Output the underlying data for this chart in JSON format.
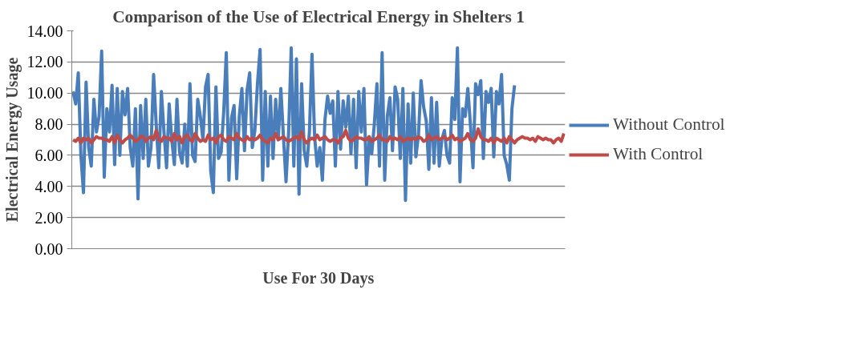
{
  "chart_data": {
    "type": "line",
    "title": "Comparison of the Use of Electrical Energy in Shelters 1",
    "xlabel": "Use For 30 Days",
    "ylabel": "Electrical Energy Usage",
    "categories": [
      null,
      null,
      null,
      null,
      null,
      null,
      null,
      null,
      null,
      null,
      null,
      null,
      null,
      null,
      null,
      null,
      null,
      null,
      null,
      null,
      null,
      null,
      null,
      null,
      null,
      null,
      null,
      null,
      null,
      null,
      null,
      null,
      null,
      null,
      null,
      null,
      null,
      null,
      null,
      null,
      null,
      null,
      null,
      null,
      null,
      null,
      null,
      null,
      null,
      null,
      null,
      null,
      null,
      null,
      null,
      null,
      null,
      null,
      null,
      null,
      null,
      null,
      null,
      null,
      null,
      null,
      null,
      null,
      null,
      null,
      null,
      null,
      null,
      null,
      null,
      null,
      null,
      null,
      null,
      null,
      null,
      null,
      null,
      null,
      null,
      null,
      null,
      null,
      null,
      null,
      null,
      null,
      null,
      null,
      null,
      null,
      null,
      null,
      null,
      null,
      null,
      null,
      null,
      null,
      null,
      null,
      null,
      null,
      null,
      null,
      null,
      null,
      null,
      null,
      null,
      null,
      null,
      null,
      null,
      null,
      null,
      null,
      null,
      null,
      null,
      null,
      null,
      null,
      null,
      null,
      null,
      null,
      null,
      null,
      null,
      null,
      null,
      null,
      null,
      null,
      null,
      null,
      null,
      null,
      null,
      null,
      null,
      null,
      null,
      null,
      null,
      null,
      null,
      null,
      null,
      null,
      null,
      null,
      null,
      null,
      null,
      null,
      null,
      null,
      null,
      null,
      null,
      null,
      null,
      null,
      null,
      null,
      null,
      null,
      null,
      null,
      null,
      null,
      null,
      null,
      null,
      null,
      null,
      null,
      null,
      null,
      null,
      null,
      null,
      null
    ],
    "series": [
      {
        "name": "Without Control",
        "color": "#4a7ebb",
        "values": [
          10.1,
          9.3,
          11.3,
          6.0,
          3.6,
          10.7,
          6.5,
          5.3,
          9.6,
          7.5,
          8.5,
          12.7,
          4.6,
          9.0,
          7.5,
          10.5,
          5.4,
          10.3,
          6.0,
          10.1,
          8.6,
          10.3,
          6.5,
          5.3,
          9.0,
          3.2,
          9.2,
          5.8,
          9.6,
          5.3,
          6.5,
          11.2,
          8.0,
          5.2,
          10.1,
          7.5,
          5.2,
          9.3,
          7.0,
          5.4,
          9.6,
          6.2,
          5.5,
          8.0,
          5.3,
          10.6,
          6.0,
          5.6,
          9.6,
          8.5,
          7.0,
          10.4,
          11.2,
          5.0,
          3.6,
          10.4,
          5.8,
          6.2,
          8.8,
          12.6,
          4.4,
          8.4,
          9.2,
          4.5,
          8.5,
          10.3,
          6.3,
          10.2,
          11.3,
          6.5,
          7.6,
          10.6,
          12.8,
          4.4,
          10.1,
          5.3,
          9.8,
          5.8,
          9.6,
          7.0,
          10.3,
          7.2,
          4.3,
          7.5,
          12.9,
          5.3,
          12.2,
          3.5,
          10.6,
          6.3,
          5.3,
          7.5,
          12.5,
          7.2,
          5.3,
          6.5,
          4.4,
          8.3,
          9.8,
          8.7,
          9.5,
          5.3,
          10.1,
          6.4,
          9.5,
          7.8,
          9.8,
          6.1,
          9.6,
          5.2,
          10.1,
          7.5,
          10.3,
          4.1,
          7.0,
          6.1,
          8.0,
          10.6,
          5.3,
          12.6,
          4.4,
          8.5,
          9.7,
          6.3,
          10.4,
          9.6,
          5.8,
          10.3,
          3.1,
          9.3,
          5.5,
          10.0,
          5.9,
          7.3,
          10.8,
          9.1,
          8.2,
          5.1,
          9.7,
          5.5,
          9.4,
          5.3,
          7.0,
          7.6,
          6.0,
          5.5,
          9.7,
          8.3,
          12.9,
          4.3,
          9.0,
          8.5,
          10.3,
          8.0,
          5.2,
          10.6,
          9.9,
          10.8,
          5.8,
          10.1,
          9.4,
          10.3,
          5.9,
          10.1,
          9.3,
          11.2,
          6.0,
          5.4,
          4.4,
          9.0,
          10.5,
          null,
          null,
          null,
          null,
          null,
          null,
          null,
          null,
          null,
          null,
          null,
          null,
          null,
          null,
          null,
          null,
          null,
          null,
          null
        ]
      },
      {
        "name": "With Control",
        "color": "#be4b48",
        "values": [
          7.0,
          6.9,
          7.1,
          6.8,
          7.1,
          7.0,
          7.1,
          6.8,
          7.0,
          7.2,
          7.1,
          7.1,
          7.0,
          7.0,
          6.9,
          7.2,
          6.8,
          7.3,
          7.0,
          6.8,
          7.0,
          7.1,
          7.3,
          7.1,
          6.9,
          7.0,
          7.2,
          7.2,
          6.9,
          7.1,
          7.2,
          7.0,
          7.6,
          7.0,
          6.9,
          7.2,
          7.1,
          7.1,
          6.9,
          7.4,
          7.0,
          7.2,
          6.8,
          7.2,
          7.3,
          7.0,
          6.9,
          7.4,
          7.1,
          6.9,
          7.0,
          6.9,
          7.3,
          7.0,
          7.1,
          6.8,
          7.2,
          7.3,
          7.0,
          6.9,
          7.2,
          7.1,
          7.0,
          7.4,
          7.1,
          7.0,
          6.9,
          7.2,
          7.0,
          7.1,
          7.0,
          7.1,
          7.3,
          7.0,
          6.9,
          6.8,
          7.1,
          7.0,
          7.4,
          7.0,
          7.1,
          7.2,
          7.0,
          6.9,
          7.0,
          7.1,
          7.2,
          7.0,
          7.5,
          7.0,
          6.8,
          7.0,
          7.1,
          7.0,
          7.3,
          7.0,
          7.1,
          7.2,
          7.0,
          6.9,
          7.0,
          7.0,
          6.8,
          7.1,
          7.2,
          7.6,
          7.1,
          6.9,
          7.0,
          7.2,
          7.1,
          7.1,
          7.0,
          7.0,
          7.2,
          6.9,
          7.0,
          7.1,
          7.3,
          7.0,
          7.0,
          6.9,
          7.2,
          7.0,
          7.1,
          7.0,
          7.2,
          6.9,
          7.0,
          7.1,
          7.0,
          7.1,
          7.0,
          7.2,
          7.1,
          6.9,
          7.0,
          7.3,
          7.0,
          7.1,
          7.2,
          7.0,
          7.1,
          7.2,
          7.0,
          7.1,
          7.3,
          7.0,
          7.1,
          6.9,
          7.0,
          7.1,
          7.4,
          7.0,
          6.9,
          7.1,
          7.7,
          7.2,
          7.0,
          7.0,
          6.9,
          7.1,
          6.8,
          7.1,
          7.0,
          6.9,
          7.1,
          6.8,
          7.2,
          7.0,
          6.8,
          7.0,
          7.1,
          7.2,
          7.1,
          7.1,
          7.0,
          7.1,
          6.9,
          7.2,
          7.1,
          7.0,
          7.1,
          7.0,
          7.0,
          6.8,
          7.0,
          7.1,
          6.9,
          7.4
        ]
      }
    ],
    "ylim": [
      0,
      14
    ],
    "yticks": [
      {
        "value": 0,
        "label": "0.00"
      },
      {
        "value": 2,
        "label": "2.00"
      },
      {
        "value": 4,
        "label": "4.00"
      },
      {
        "value": 6,
        "label": "6.00"
      },
      {
        "value": 8,
        "label": "8.00"
      },
      {
        "value": 10,
        "label": "10.00"
      },
      {
        "value": 12,
        "label": "12.00"
      },
      {
        "value": 14,
        "label": "14.00"
      }
    ],
    "grid": "y",
    "legend": "right",
    "marker": "none",
    "line_style": "solid"
  }
}
